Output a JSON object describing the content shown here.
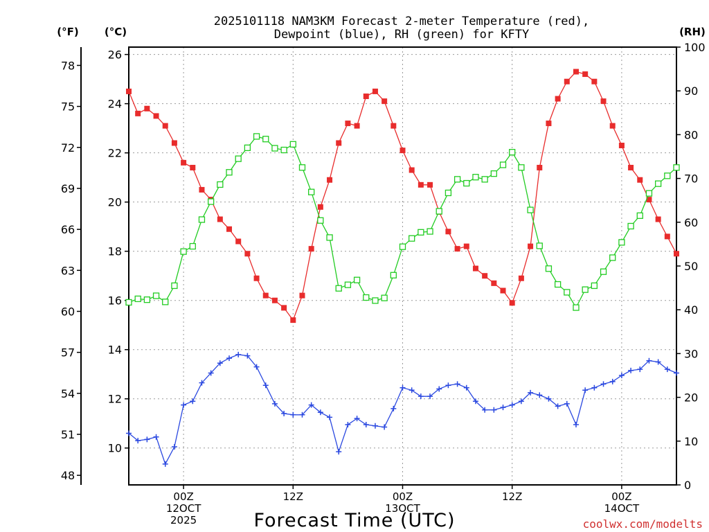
{
  "chart_data": {
    "type": "line",
    "title": "2025101118 NAM3KM Forecast 2-meter Temperature (red), Dewpoint (blue), RH (green) for KFTY",
    "title_lines": [
      "2025101118 NAM3KM Forecast 2-meter Temperature (red),",
      "Dewpoint (blue), RH (green) for KFTY"
    ],
    "xlabel": "Forecast Time (UTC)",
    "credit": "coolwx.com/modelts",
    "units": {
      "fahrenheit": "(°F)",
      "celsius": "(°C)",
      "rh": "(RH)"
    },
    "x_start_hour": 18,
    "x_end_hour": 78,
    "x_ticks": [
      {
        "hour": 24,
        "lines": [
          "00Z",
          "12OCT",
          "2025"
        ]
      },
      {
        "hour": 36,
        "lines": [
          "12Z"
        ]
      },
      {
        "hour": 48,
        "lines": [
          "00Z",
          "13OCT"
        ]
      },
      {
        "hour": 60,
        "lines": [
          "12Z"
        ]
      },
      {
        "hour": 72,
        "lines": [
          "00Z",
          "14OCT"
        ]
      }
    ],
    "ylim_c": [
      8.5,
      26.3
    ],
    "yticks_c": [
      10,
      12,
      14,
      16,
      18,
      20,
      22,
      24,
      26
    ],
    "yticks_f": [
      48,
      51,
      54,
      57,
      60,
      63,
      66,
      69,
      72,
      75,
      78
    ],
    "ylim_rh": [
      0,
      100
    ],
    "yticks_rh": [
      0,
      10,
      20,
      30,
      40,
      50,
      60,
      70,
      80,
      90,
      100
    ],
    "series": [
      {
        "name": "2-meter Temperature",
        "axis": "celsius",
        "color": "#e82c2c",
        "marker": "filled-square",
        "values": [
          24.5,
          23.6,
          23.8,
          23.5,
          23.1,
          22.4,
          21.6,
          21.4,
          20.5,
          20.1,
          19.3,
          18.9,
          18.4,
          17.9,
          16.9,
          16.2,
          16.0,
          15.7,
          15.2,
          16.2,
          18.1,
          19.8,
          20.9,
          22.4,
          23.2,
          23.1,
          24.3,
          24.5,
          24.1,
          23.1,
          22.1,
          21.3,
          20.7,
          20.7,
          19.6,
          18.8,
          18.1,
          18.2,
          17.3,
          17.0,
          16.7,
          16.4,
          15.9,
          16.9,
          18.2,
          21.4,
          23.2,
          24.2,
          24.9,
          25.3,
          25.2,
          24.9,
          24.1,
          23.1,
          22.3,
          21.4,
          20.9,
          20.1,
          19.3,
          18.6,
          17.9
        ]
      },
      {
        "name": "Dewpoint",
        "axis": "celsius",
        "color": "#2a48e0",
        "marker": "plus",
        "values": [
          10.6,
          10.3,
          10.35,
          10.45,
          9.35,
          10.05,
          11.75,
          11.9,
          12.65,
          13.05,
          13.45,
          13.65,
          13.8,
          13.75,
          13.3,
          12.55,
          11.8,
          11.4,
          11.35,
          11.35,
          11.75,
          11.45,
          11.25,
          9.85,
          10.95,
          11.2,
          10.95,
          10.9,
          10.85,
          11.6,
          12.45,
          12.35,
          12.1,
          12.1,
          12.4,
          12.55,
          12.6,
          12.45,
          11.9,
          11.55,
          11.55,
          11.65,
          11.75,
          11.9,
          12.25,
          12.15,
          12.0,
          11.7,
          11.8,
          10.95,
          12.35,
          12.45,
          12.6,
          12.7,
          12.95,
          13.15,
          13.2,
          13.55,
          13.5,
          13.2,
          13.05
        ]
      },
      {
        "name": "Relative Humidity",
        "axis": "rh",
        "color": "#22cc22",
        "marker": "hollow-square",
        "values": [
          41.7,
          42.5,
          42.3,
          43.2,
          41.8,
          45.5,
          53.3,
          54.5,
          60.6,
          64.7,
          68.6,
          71.4,
          74.5,
          77.0,
          79.6,
          79.0,
          76.9,
          76.5,
          77.8,
          72.5,
          66.9,
          60.4,
          56.5,
          44.9,
          45.7,
          46.8,
          42.8,
          42.1,
          42.7,
          47.9,
          54.4,
          56.3,
          57.7,
          57.9,
          62.5,
          66.7,
          69.8,
          68.9,
          70.3,
          69.8,
          71.1,
          73.1,
          76.0,
          72.5,
          62.8,
          54.6,
          49.4,
          45.8,
          44.0,
          40.5,
          44.6,
          45.5,
          48.7,
          51.9,
          55.4,
          59.1,
          61.5,
          66.6,
          68.8,
          70.6,
          72.5
        ]
      }
    ]
  }
}
